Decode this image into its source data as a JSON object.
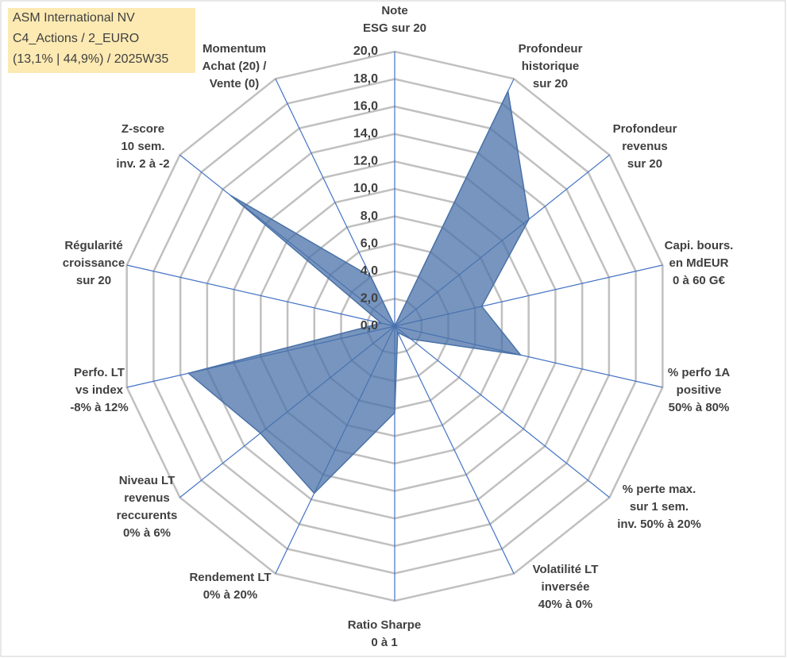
{
  "chart_data": {
    "type": "radar",
    "title": [
      "ASM International NV",
      "C4_Actions / 2_EURO",
      "(13,1% | 44,9%) / 2025W35"
    ],
    "categories": [
      [
        "Note",
        "ESG sur 20"
      ],
      [
        "Profondeur",
        "historique",
        "sur 20"
      ],
      [
        "Profondeur",
        "revenus",
        "sur 20"
      ],
      [
        "Capi. bours.",
        "en MdEUR",
        "0 à 60 G€"
      ],
      [
        "% perfo 1A",
        "positive",
        "50% à 80%"
      ],
      [
        "% perte max.",
        "sur 1 sem.",
        "inv. 50% à 20%"
      ],
      [
        "Volatilité LT",
        "inversée",
        "40% à 0%"
      ],
      [
        "Ratio Sharpe",
        "0 à 1"
      ],
      [
        "Rendement LT",
        "0% à 20%"
      ],
      [
        "Niveau LT",
        "revenus",
        "reccurents",
        "0% à 6%"
      ],
      [
        "Perfo. LT",
        "vs index",
        "-8% à 12%"
      ],
      [
        "Régularité",
        "croissance",
        "sur 20"
      ],
      [
        "Z-score",
        "10 sem.",
        "inv. 2 à -2"
      ],
      [
        "Momentum",
        "Achat (20) /",
        "Vente (0)"
      ]
    ],
    "values": [
      0,
      19,
      12.5,
      6.5,
      9.4,
      1.5,
      0.5,
      6.3,
      13.5,
      12.5,
      15.4,
      1,
      15.3,
      4
    ],
    "color": "#4a72a8",
    "ylim": [
      0,
      20
    ],
    "yticks": [
      {
        "value": 0,
        "label": "0,0"
      },
      {
        "value": 2,
        "label": "2,0"
      },
      {
        "value": 4,
        "label": "4,0"
      },
      {
        "value": 6,
        "label": "6,0"
      },
      {
        "value": 8,
        "label": "8,0"
      },
      {
        "value": 10,
        "label": "10,0"
      },
      {
        "value": 12,
        "label": "12,0"
      },
      {
        "value": 14,
        "label": "14,0"
      },
      {
        "value": 16,
        "label": "16,0"
      },
      {
        "value": 18,
        "label": "18,0"
      },
      {
        "value": 20,
        "label": "20,0"
      }
    ],
    "grid": true
  }
}
